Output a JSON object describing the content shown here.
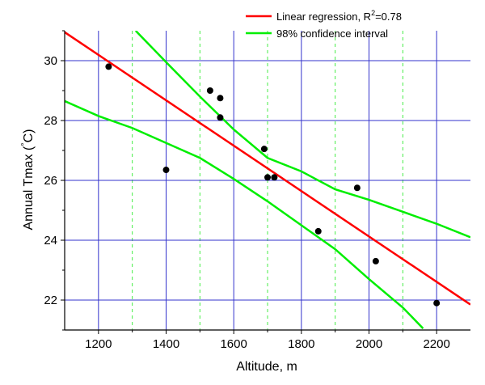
{
  "chart_data": {
    "type": "scatter",
    "title": "",
    "xlabel": "Altitude, m",
    "ylabel_main": "Annual Tmax (",
    "ylabel_deg": "°",
    "ylabel_unit": "C)",
    "xlim": [
      1100,
      2300
    ],
    "ylim": [
      21,
      31
    ],
    "grid": true,
    "legend_position": "top-right",
    "x_ticks": [
      1200,
      1400,
      1600,
      1800,
      2000,
      2200
    ],
    "x_tick_labels": [
      "1200",
      "1400",
      "1600",
      "1800",
      "2000",
      "2200"
    ],
    "y_ticks": [
      22,
      24,
      26,
      28,
      30
    ],
    "y_tick_labels": [
      "22",
      "24",
      "26",
      "28",
      "30"
    ],
    "x_minor_ticks": [
      1300,
      1500,
      1700,
      1900,
      2100
    ],
    "points": {
      "x": [
        1230,
        1400,
        1530,
        1560,
        1560,
        1690,
        1700,
        1720,
        1850,
        1965,
        2020,
        2200
      ],
      "y": [
        29.8,
        26.35,
        29.0,
        28.75,
        28.1,
        27.05,
        26.1,
        26.1,
        24.3,
        25.75,
        23.3,
        21.9
      ]
    },
    "series": [
      {
        "name": "Linear regression, R",
        "name_sup": "2",
        "name_suffix": "=0.78",
        "color": "#ff0000",
        "x": [
          1100,
          2300
        ],
        "y": [
          30.95,
          21.85
        ]
      },
      {
        "name": "98% confidence interval",
        "color": "#00ee00",
        "upper": {
          "x": [
            1310,
            1400,
            1500,
            1600,
            1700,
            1800,
            1900,
            2000,
            2100,
            2200,
            2300
          ],
          "y": [
            31.0,
            29.95,
            28.8,
            27.7,
            26.75,
            26.3,
            25.7,
            25.35,
            24.95,
            24.55,
            24.1
          ]
        },
        "lower": {
          "x": [
            1100,
            1200,
            1300,
            1400,
            1500,
            1600,
            1700,
            1800,
            1900,
            2000,
            2100,
            2160
          ],
          "y": [
            28.65,
            28.15,
            27.75,
            27.25,
            26.75,
            26.05,
            25.3,
            24.5,
            23.7,
            22.7,
            21.75,
            21.05
          ]
        }
      }
    ],
    "colors": {
      "major_grid": "#3333cc",
      "minor_grid": "#44ee44",
      "points": "#000000",
      "axes": "#000000"
    }
  }
}
